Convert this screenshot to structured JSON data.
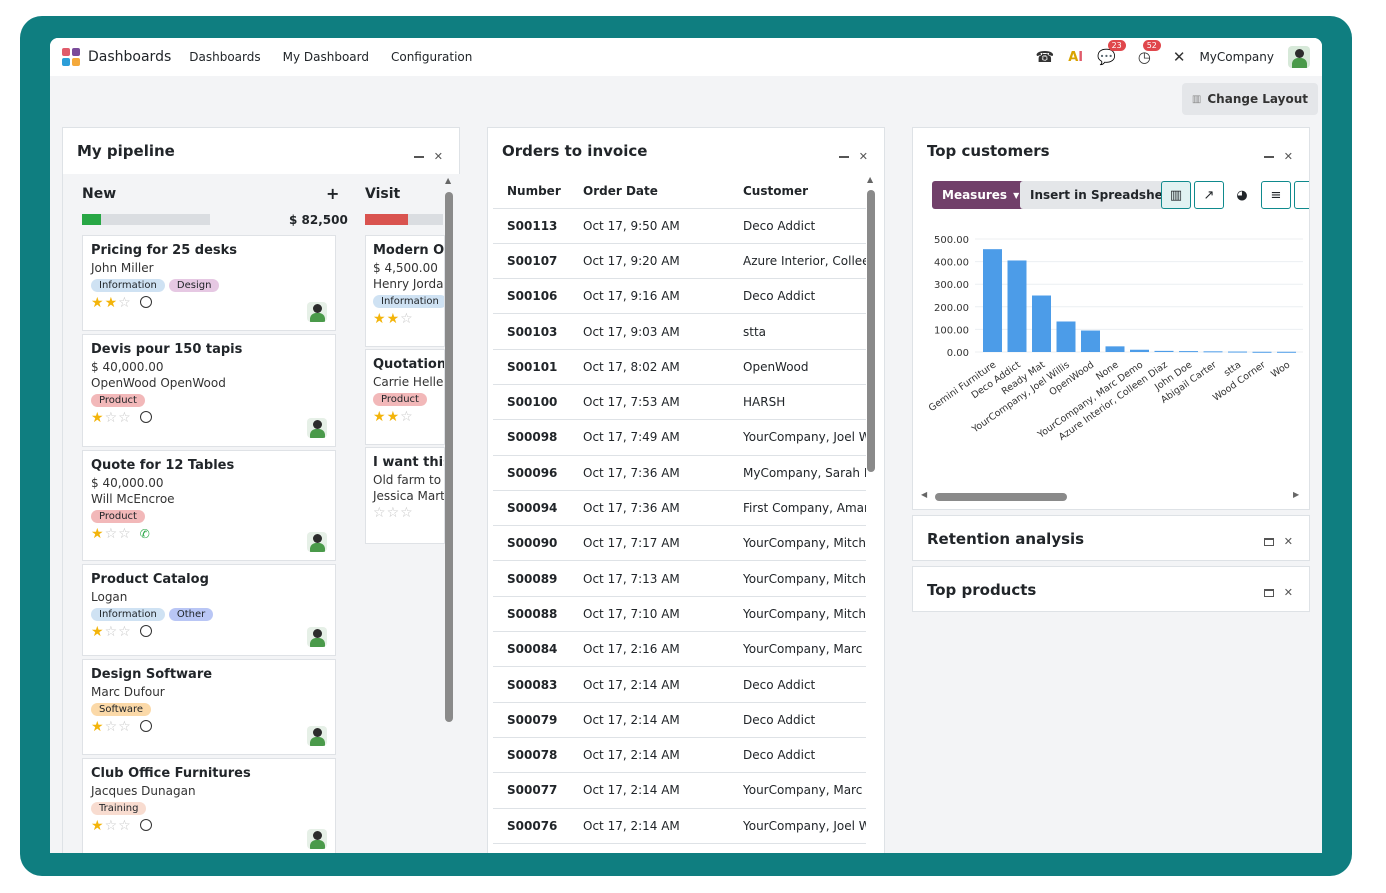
{
  "topbar": {
    "app_name": "Dashboards",
    "menu": [
      "Dashboards",
      "My Dashboard",
      "Configuration"
    ],
    "icons": [
      "phone-icon",
      "ai-icon",
      "chat-icon",
      "activity-icon",
      "tools-icon"
    ],
    "chat_count": "23",
    "activity_count": "52",
    "company": "MyCompany"
  },
  "subbar": {
    "change_layout": "Change Layout"
  },
  "pipeline": {
    "title": "My pipeline",
    "new_column": {
      "title": "New",
      "add": "+",
      "total": "$ 82,500",
      "progress_green": 0.15
    },
    "visit_column": {
      "title": "Visit",
      "progress_red": 0.55
    },
    "cards": [
      {
        "title": "Pricing for 25 desks",
        "lines": [
          "John Miller"
        ],
        "tags": [
          {
            "label": "Information",
            "bg": "#cfe2f3"
          },
          {
            "label": "Design",
            "bg": "#e6c8e3"
          }
        ],
        "stars": 2,
        "icon": "clock"
      },
      {
        "title": "Devis pour 150 tapis",
        "lines": [
          "$ 40,000.00",
          "OpenWood  OpenWood"
        ],
        "tags": [
          {
            "label": "Product",
            "bg": "#f2b8b9"
          }
        ],
        "stars": 1,
        "icon": "clock"
      },
      {
        "title": "Quote for 12 Tables",
        "lines": [
          "$ 40,000.00",
          "Will McEncroe"
        ],
        "tags": [
          {
            "label": "Product",
            "bg": "#f2b8b9"
          }
        ],
        "stars": 1,
        "icon": "phone"
      },
      {
        "title": "Product Catalog",
        "lines": [
          "Logan"
        ],
        "tags": [
          {
            "label": "Information",
            "bg": "#cfe2f3"
          },
          {
            "label": "Other",
            "bg": "#b9c6f5"
          }
        ],
        "stars": 1,
        "icon": "clock"
      },
      {
        "title": "Design Software",
        "lines": [
          "Marc Dufour"
        ],
        "tags": [
          {
            "label": "Software",
            "bg": "#fbd9a8"
          }
        ],
        "stars": 1,
        "icon": "clock"
      },
      {
        "title": "Club Office Furnitures",
        "lines": [
          "Jacques Dunagan"
        ],
        "tags": [
          {
            "label": "Training",
            "bg": "#f8dcd0"
          }
        ],
        "stars": 1,
        "icon": "clock"
      }
    ],
    "visit_cards": [
      {
        "title": "Modern Op",
        "lines": [
          "$ 4,500.00",
          "Henry Jordai"
        ],
        "tags": [
          {
            "label": "Information",
            "bg": "#cfe2f3"
          }
        ],
        "stars": 2
      },
      {
        "title": "Quotation I",
        "lines": [
          "Carrie Helle"
        ],
        "tags": [
          {
            "label": "Product",
            "bg": "#f2b8b9"
          }
        ],
        "stars": 2
      },
      {
        "title": "I want this I",
        "lines": [
          "Old farm to r",
          "Jessica Marti"
        ],
        "tags": [],
        "stars": 0
      }
    ]
  },
  "orders": {
    "title": "Orders to invoice",
    "columns": [
      "Number",
      "Order Date",
      "Customer"
    ],
    "rows": [
      [
        "S00113",
        "Oct 17, 9:50 AM",
        "Deco Addict"
      ],
      [
        "S00107",
        "Oct 17, 9:20 AM",
        "Azure Interior, Colleen"
      ],
      [
        "S00106",
        "Oct 17, 9:16 AM",
        "Deco Addict"
      ],
      [
        "S00103",
        "Oct 17, 9:03 AM",
        "stta"
      ],
      [
        "S00101",
        "Oct 17, 8:02 AM",
        "OpenWood"
      ],
      [
        "S00100",
        "Oct 17, 7:53 AM",
        "HARSH"
      ],
      [
        "S00098",
        "Oct 17, 7:49 AM",
        "YourCompany, Joel Wil"
      ],
      [
        "S00096",
        "Oct 17, 7:36 AM",
        "MyCompany, Sarah Dav"
      ],
      [
        "S00094",
        "Oct 17, 7:36 AM",
        "First Company, Amand"
      ],
      [
        "S00090",
        "Oct 17, 7:17 AM",
        "YourCompany, Mitchell"
      ],
      [
        "S00089",
        "Oct 17, 7:13 AM",
        "YourCompany, Mitchell"
      ],
      [
        "S00088",
        "Oct 17, 7:10 AM",
        "YourCompany, Mitchell"
      ],
      [
        "S00084",
        "Oct 17, 2:16 AM",
        "YourCompany, Marc De"
      ],
      [
        "S00083",
        "Oct 17, 2:14 AM",
        "Deco Addict"
      ],
      [
        "S00079",
        "Oct 17, 2:14 AM",
        "Deco Addict"
      ],
      [
        "S00078",
        "Oct 17, 2:14 AM",
        "Deco Addict"
      ],
      [
        "S00077",
        "Oct 17, 2:14 AM",
        "YourCompany, Marc De"
      ],
      [
        "S00076",
        "Oct 17, 2:14 AM",
        "YourCompany, Joel Wil"
      ]
    ]
  },
  "customers": {
    "title": "Top customers",
    "measures": "Measures",
    "insert": "Insert in Spreadsheet",
    "view_icons": [
      "bar-chart-icon",
      "line-chart-icon",
      "pie-chart-icon",
      "database-icon"
    ]
  },
  "chart_data": {
    "type": "bar",
    "categories": [
      "Gemini Furniture",
      "Deco Addict",
      "Ready Mat",
      "YourCompany, Joel Willis",
      "OpenWood",
      "None",
      "YourCompany, Marc Demo",
      "Azure Interior, Colleen Diaz",
      "John Doe",
      "Abigail Carter",
      "stta",
      "Wood Corner",
      "Woo"
    ],
    "values": [
      455,
      405,
      250,
      135,
      95,
      25,
      10,
      5,
      4,
      3,
      2,
      1,
      1
    ],
    "yticks": [
      "500.00",
      "400.00",
      "300.00",
      "200.00",
      "100.00",
      "0.00"
    ],
    "ylim": [
      0,
      500
    ],
    "bar_color": "#4c9ce8",
    "grid": true
  },
  "retention": {
    "title": "Retention analysis"
  },
  "top_products": {
    "title": "Top products"
  }
}
